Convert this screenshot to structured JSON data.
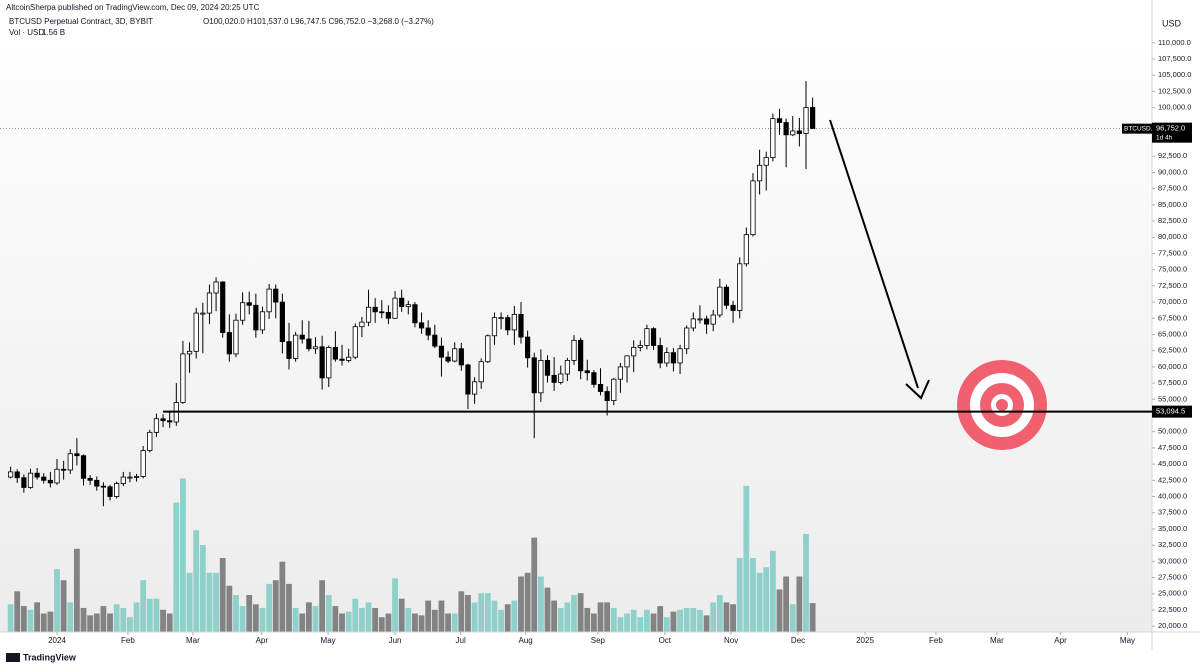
{
  "page_header": "AltcoinSherpa published on TradingView.com, Dec 09, 2024 20:25 UTC",
  "footer_brand": "TradingView",
  "chart_data": {
    "type": "candlestick",
    "symbol_line": "BTCUSD Perpetual Contract, 3D, BYBIT",
    "ohlc_text": "O100,020.0 H101,537.0 L96,747.5 C96,752.0 −3,268.0 (−3.27%)",
    "volume_label": "Vol · USD",
    "volume_value_label": "1.56 B",
    "y_axis_label": "USD",
    "up_color": "#ffffff",
    "down_color": "#000000",
    "wick_color": "#000000",
    "volume_up_color": "#8fd1ca",
    "volume_down_color": "#838383",
    "xlim": [
      -1.6,
      172.2
    ],
    "ylim": [
      19100,
      116600
    ],
    "xticks": [
      {
        "value": 7,
        "label": "2024"
      },
      {
        "value": 17.7,
        "label": "Feb"
      },
      {
        "value": 27.5,
        "label": "Mar"
      },
      {
        "value": 37.9,
        "label": "Apr"
      },
      {
        "value": 47.9,
        "label": "May"
      },
      {
        "value": 58,
        "label": "Jun"
      },
      {
        "value": 67.9,
        "label": "Jul"
      },
      {
        "value": 77.7,
        "label": "Aug"
      },
      {
        "value": 88.6,
        "label": "Sep"
      },
      {
        "value": 98.7,
        "label": "Oct"
      },
      {
        "value": 108.7,
        "label": "Nov"
      },
      {
        "value": 118.8,
        "label": "Dec"
      },
      {
        "value": 128.9,
        "label": "2025"
      },
      {
        "value": 139.6,
        "label": "Feb"
      },
      {
        "value": 148.8,
        "label": "Mar"
      },
      {
        "value": 158.4,
        "label": "Apr"
      },
      {
        "value": 168.5,
        "label": "May"
      }
    ],
    "yticks": [
      {
        "value": 20000,
        "label": "20,000.0"
      },
      {
        "value": 22500,
        "label": "22,500.0"
      },
      {
        "value": 25000,
        "label": "25,000.0"
      },
      {
        "value": 27500,
        "label": "27,500.0"
      },
      {
        "value": 30000,
        "label": "30,000.0"
      },
      {
        "value": 32500,
        "label": "32,500.0"
      },
      {
        "value": 35000,
        "label": "35,000.0"
      },
      {
        "value": 37500,
        "label": "37,500.0"
      },
      {
        "value": 40000,
        "label": "40,000.0"
      },
      {
        "value": 42500,
        "label": "42,500.0"
      },
      {
        "value": 45000,
        "label": "45,000.0"
      },
      {
        "value": 47500,
        "label": "47,500.0"
      },
      {
        "value": 50000,
        "label": "50,000.0"
      },
      {
        "value": 55000,
        "label": "55,000.0"
      },
      {
        "value": 57500,
        "label": "57,500.0"
      },
      {
        "value": 60000,
        "label": "60,000.0"
      },
      {
        "value": 62500,
        "label": "62,500.0"
      },
      {
        "value": 65000,
        "label": "65,000.0"
      },
      {
        "value": 67500,
        "label": "67,500.0"
      },
      {
        "value": 70000,
        "label": "70,000.0"
      },
      {
        "value": 72500,
        "label": "72,500.0"
      },
      {
        "value": 75000,
        "label": "75,000.0"
      },
      {
        "value": 77500,
        "label": "77,500.0"
      },
      {
        "value": 80000,
        "label": "80,000.0"
      },
      {
        "value": 82500,
        "label": "82,500.0"
      },
      {
        "value": 85000,
        "label": "85,000.0"
      },
      {
        "value": 87500,
        "label": "87,500.0"
      },
      {
        "value": 90000,
        "label": "90,000.0"
      },
      {
        "value": 92500,
        "label": "92,500.0"
      },
      {
        "value": 100000,
        "label": "100,000.0"
      },
      {
        "value": 102500,
        "label": "102,500.0"
      },
      {
        "value": 105000,
        "label": "105,000.0"
      },
      {
        "value": 107500,
        "label": "107,500.0"
      },
      {
        "value": 110000,
        "label": "110,000.0"
      }
    ],
    "hline": {
      "value": 53094.5,
      "label": "53,094.5",
      "start": 23
    },
    "last_price": {
      "value": 96752,
      "label": "96,752.0",
      "symbol": "BTCUSD.P",
      "countdown": "1d 4h"
    },
    "ohlc": [
      [
        43000,
        44600,
        42800,
        43800
      ],
      [
        43800,
        44200,
        42100,
        42900
      ],
      [
        42900,
        43400,
        40600,
        41400
      ],
      [
        41400,
        44300,
        41200,
        43600
      ],
      [
        43600,
        44400,
        42600,
        43000
      ],
      [
        43000,
        43600,
        42000,
        42500
      ],
      [
        42500,
        43800,
        41400,
        42100
      ],
      [
        42100,
        45800,
        41800,
        44200
      ],
      [
        44200,
        45500,
        42600,
        44100
      ],
      [
        44100,
        47300,
        43500,
        46600
      ],
      [
        46600,
        49000,
        44800,
        46300
      ],
      [
        46300,
        46500,
        41700,
        42800
      ],
      [
        42800,
        43300,
        41800,
        42500
      ],
      [
        42500,
        43100,
        40900,
        41600
      ],
      [
        41600,
        42200,
        38500,
        41500
      ],
      [
        41500,
        41800,
        39400,
        40000
      ],
      [
        40000,
        42300,
        39700,
        42000
      ],
      [
        42000,
        43800,
        41600,
        43000
      ],
      [
        43000,
        43800,
        42200,
        43000
      ],
      [
        43000,
        43500,
        42300,
        43100
      ],
      [
        43100,
        47800,
        42800,
        47100
      ],
      [
        47100,
        50300,
        46800,
        49900
      ],
      [
        49900,
        52800,
        49200,
        52000
      ],
      [
        52000,
        52700,
        50700,
        51700
      ],
      [
        51700,
        53000,
        50600,
        51500
      ],
      [
        51500,
        57500,
        50900,
        54500
      ],
      [
        54500,
        64000,
        54300,
        62000
      ],
      [
        62000,
        63800,
        59100,
        62400
      ],
      [
        62400,
        69100,
        61300,
        68300
      ],
      [
        68300,
        69900,
        62100,
        68300
      ],
      [
        68300,
        72700,
        66600,
        71400
      ],
      [
        71400,
        73800,
        68600,
        73100
      ],
      [
        73100,
        73200,
        64500,
        65300
      ],
      [
        65300,
        68100,
        60800,
        62000
      ],
      [
        62000,
        68200,
        61500,
        67200
      ],
      [
        67200,
        71500,
        66500,
        69900
      ],
      [
        69900,
        71600,
        68100,
        69500
      ],
      [
        69500,
        71300,
        64500,
        65700
      ],
      [
        65700,
        69300,
        65100,
        68500
      ],
      [
        68500,
        72800,
        67400,
        72000
      ],
      [
        72000,
        72700,
        67500,
        70000
      ],
      [
        70000,
        71300,
        62100,
        63900
      ],
      [
        63900,
        66800,
        59600,
        61300
      ],
      [
        61300,
        65400,
        60800,
        64900
      ],
      [
        64900,
        67200,
        63600,
        64300
      ],
      [
        64300,
        67100,
        62400,
        62800
      ],
      [
        62800,
        64600,
        62000,
        63100
      ],
      [
        63100,
        64800,
        56500,
        58300
      ],
      [
        58300,
        63300,
        56900,
        63000
      ],
      [
        63000,
        65500,
        60800,
        61200
      ],
      [
        61200,
        63400,
        60200,
        61000
      ],
      [
        61000,
        62800,
        60700,
        61500
      ],
      [
        61500,
        66700,
        61200,
        66200
      ],
      [
        66200,
        67700,
        64600,
        66900
      ],
      [
        66900,
        71900,
        66300,
        69200
      ],
      [
        69200,
        70600,
        66800,
        68500
      ],
      [
        68500,
        70300,
        67500,
        68400
      ],
      [
        68400,
        69500,
        66600,
        67500
      ],
      [
        67500,
        71700,
        67400,
        70600
      ],
      [
        70600,
        71900,
        68500,
        69300
      ],
      [
        69300,
        70200,
        68100,
        69600
      ],
      [
        69600,
        70000,
        66100,
        66800
      ],
      [
        66800,
        68400,
        65100,
        66000
      ],
      [
        66000,
        67200,
        64100,
        64900
      ],
      [
        64900,
        66500,
        62900,
        63200
      ],
      [
        63200,
        64500,
        58500,
        61500
      ],
      [
        61500,
        62400,
        60600,
        60900
      ],
      [
        60900,
        63800,
        60700,
        62800
      ],
      [
        62800,
        63700,
        59400,
        60300
      ],
      [
        60300,
        60500,
        53500,
        55800
      ],
      [
        55800,
        58400,
        54300,
        57700
      ],
      [
        57700,
        61300,
        56600,
        60800
      ],
      [
        60800,
        65000,
        60600,
        64800
      ],
      [
        64800,
        68400,
        63400,
        67600
      ],
      [
        67600,
        68400,
        65800,
        67600
      ],
      [
        67600,
        68000,
        64900,
        65700
      ],
      [
        65700,
        69400,
        63400,
        68100
      ],
      [
        68100,
        70000,
        63600,
        64600
      ],
      [
        64600,
        65600,
        59900,
        61400
      ],
      [
        61400,
        62200,
        49000,
        56000
      ],
      [
        56000,
        62700,
        54600,
        61000
      ],
      [
        61000,
        61800,
        57600,
        58700
      ],
      [
        58700,
        61500,
        56300,
        57600
      ],
      [
        57600,
        60200,
        57300,
        58900
      ],
      [
        58900,
        61400,
        57800,
        61000
      ],
      [
        61000,
        64900,
        60300,
        64100
      ],
      [
        64100,
        64500,
        58100,
        59400
      ],
      [
        59400,
        61100,
        57900,
        59100
      ],
      [
        59100,
        59500,
        56800,
        57300
      ],
      [
        57300,
        59800,
        55600,
        56200
      ],
      [
        56200,
        57000,
        52500,
        54800
      ],
      [
        54800,
        58300,
        54100,
        58100
      ],
      [
        58100,
        60600,
        56000,
        60000
      ],
      [
        60000,
        61800,
        57600,
        61700
      ],
      [
        61700,
        64100,
        59200,
        63000
      ],
      [
        63000,
        64100,
        62400,
        63300
      ],
      [
        63300,
        66500,
        62700,
        65900
      ],
      [
        65900,
        66100,
        62600,
        63300
      ],
      [
        63300,
        64500,
        59800,
        60600
      ],
      [
        60600,
        63000,
        60000,
        62200
      ],
      [
        62200,
        62900,
        59300,
        60600
      ],
      [
        60600,
        63400,
        58900,
        62800
      ],
      [
        62800,
        66400,
        62000,
        66000
      ],
      [
        66000,
        68400,
        65500,
        67400
      ],
      [
        67400,
        69500,
        66700,
        67400
      ],
      [
        67400,
        67900,
        65100,
        66600
      ],
      [
        66600,
        68800,
        65500,
        68000
      ],
      [
        68000,
        73600,
        67600,
        72300
      ],
      [
        72300,
        72700,
        68900,
        69500
      ],
      [
        69500,
        70200,
        66800,
        68700
      ],
      [
        68700,
        76900,
        67500,
        75900
      ],
      [
        75900,
        81500,
        75500,
        80400
      ],
      [
        80400,
        89900,
        80100,
        88700
      ],
      [
        88700,
        93500,
        86600,
        91100
      ],
      [
        91100,
        93200,
        87200,
        92300
      ],
      [
        92300,
        99100,
        91700,
        98300
      ],
      [
        98300,
        99800,
        95800,
        97700
      ],
      [
        97700,
        98300,
        90800,
        95800
      ],
      [
        95800,
        98700,
        95600,
        96400
      ],
      [
        96400,
        98400,
        94000,
        96000
      ],
      [
        96000,
        104100,
        90500,
        100020
      ],
      [
        100020,
        101537,
        96747.5,
        96752
      ]
    ],
    "volume": [
      1.5,
      2.2,
      1.4,
      1.2,
      1.6,
      1.0,
      1.1,
      3.4,
      2.8,
      1.6,
      4.5,
      1.3,
      0.9,
      1.0,
      1.4,
      1.0,
      1.5,
      1.3,
      0.8,
      1.6,
      2.8,
      1.8,
      1.8,
      1.2,
      1.0,
      7.0,
      8.3,
      3.2,
      5.5,
      4.7,
      3.2,
      3.2,
      4.0,
      2.5,
      2.0,
      1.4,
      2.0,
      1.5,
      1.3,
      2.6,
      2.8,
      3.8,
      2.6,
      1.3,
      1.0,
      1.6,
      1.4,
      2.8,
      2.0,
      1.4,
      1.0,
      1.1,
      1.8,
      1.3,
      1.6,
      1.3,
      0.8,
      1.0,
      2.9,
      1.8,
      1.3,
      1.0,
      0.9,
      1.7,
      1.2,
      1.7,
      1.0,
      1.0,
      2.2,
      2.0,
      1.6,
      2.1,
      2.1,
      1.7,
      1.2,
      1.5,
      1.7,
      3.0,
      3.2,
      5.1,
      3.0,
      2.4,
      1.7,
      1.3,
      1.6,
      2.0,
      2.1,
      1.3,
      1.0,
      1.6,
      1.6,
      1.3,
      0.8,
      1.0,
      1.2,
      0.8,
      1.2,
      1.0,
      1.4,
      0.8,
      1.1,
      1.2,
      1.3,
      1.3,
      1.2,
      0.9,
      1.6,
      2.0,
      1.6,
      1.5,
      4.0,
      7.9,
      4.0,
      3.2,
      3.5,
      4.4,
      2.3,
      3.0,
      1.5,
      3.0,
      5.3,
      1.56
    ]
  }
}
